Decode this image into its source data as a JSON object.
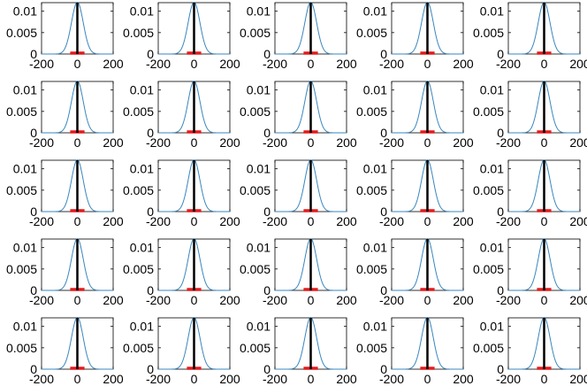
{
  "figure": {
    "grid": {
      "rows": 5,
      "cols": 5
    },
    "colors": {
      "curve": "#3a87bf",
      "mean_line": "#000000",
      "interval": "#e41a1c",
      "axes": "#000000"
    }
  },
  "chart_data": {
    "type": "line",
    "layout": "5x5 small multiples",
    "description_of_each_panel": "gaussian density curve with vertical black line at x=0 and red horizontal bar on y=0",
    "xlim": [
      -200,
      200
    ],
    "ylim": [
      0,
      0.012
    ],
    "xticks": [
      -200,
      0,
      200
    ],
    "xtick_labels": [
      "-200",
      "0",
      "200"
    ],
    "yticks": [
      0,
      0.005,
      0.01
    ],
    "ytick_labels": [
      "0",
      "0.005",
      "0.01"
    ],
    "grid": false,
    "panels": [
      {
        "mean": 0,
        "sd": 33,
        "interval": [
          -40,
          40
        ]
      },
      {
        "mean": 0,
        "sd": 33,
        "interval": [
          -40,
          40
        ]
      },
      {
        "mean": 0,
        "sd": 33,
        "interval": [
          -40,
          40
        ]
      },
      {
        "mean": 0,
        "sd": 33,
        "interval": [
          -40,
          40
        ]
      },
      {
        "mean": 0,
        "sd": 33,
        "interval": [
          -40,
          40
        ]
      },
      {
        "mean": 0,
        "sd": 33,
        "interval": [
          -40,
          40
        ]
      },
      {
        "mean": 0,
        "sd": 33,
        "interval": [
          -40,
          40
        ]
      },
      {
        "mean": 0,
        "sd": 33,
        "interval": [
          -40,
          40
        ]
      },
      {
        "mean": 0,
        "sd": 33,
        "interval": [
          -40,
          40
        ]
      },
      {
        "mean": 0,
        "sd": 33,
        "interval": [
          -40,
          40
        ]
      },
      {
        "mean": 0,
        "sd": 33,
        "interval": [
          -40,
          40
        ]
      },
      {
        "mean": 0,
        "sd": 33,
        "interval": [
          -40,
          40
        ]
      },
      {
        "mean": 0,
        "sd": 33,
        "interval": [
          -40,
          40
        ]
      },
      {
        "mean": 0,
        "sd": 33,
        "interval": [
          -40,
          40
        ]
      },
      {
        "mean": 0,
        "sd": 33,
        "interval": [
          -40,
          40
        ]
      },
      {
        "mean": 0,
        "sd": 33,
        "interval": [
          -40,
          40
        ]
      },
      {
        "mean": 0,
        "sd": 33,
        "interval": [
          -40,
          40
        ]
      },
      {
        "mean": 0,
        "sd": 33,
        "interval": [
          -40,
          40
        ]
      },
      {
        "mean": 0,
        "sd": 33,
        "interval": [
          -40,
          40
        ]
      },
      {
        "mean": 0,
        "sd": 33,
        "interval": [
          -40,
          40
        ]
      },
      {
        "mean": 0,
        "sd": 33,
        "interval": [
          -40,
          40
        ]
      },
      {
        "mean": 0,
        "sd": 33,
        "interval": [
          -40,
          40
        ]
      },
      {
        "mean": 0,
        "sd": 33,
        "interval": [
          -40,
          40
        ]
      },
      {
        "mean": 0,
        "sd": 33,
        "interval": [
          -40,
          40
        ]
      },
      {
        "mean": 0,
        "sd": 33,
        "interval": [
          -40,
          40
        ]
      }
    ]
  }
}
